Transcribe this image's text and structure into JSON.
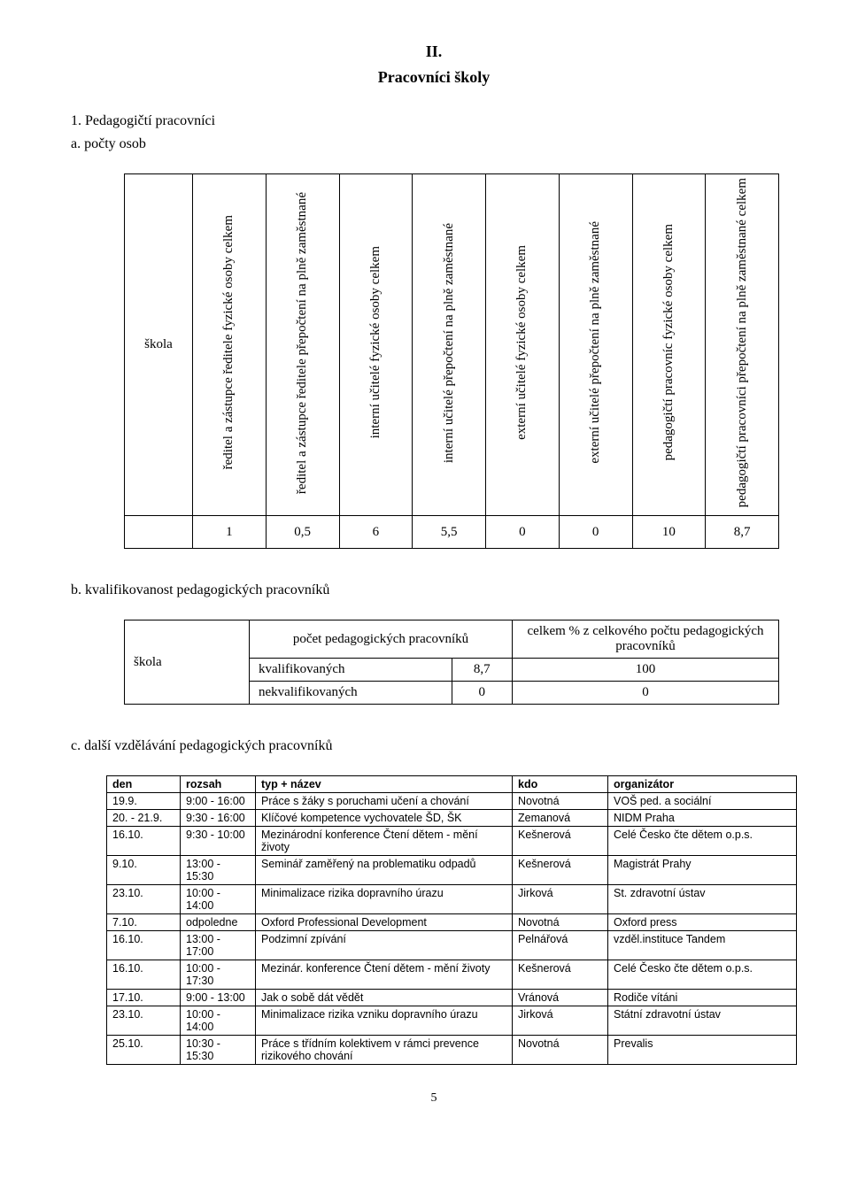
{
  "header": {
    "number": "II.",
    "title": "Pracovníci školy"
  },
  "sec1": {
    "line": "1.    Pedagogičtí pracovníci",
    "sub_a": "a.        počty osob"
  },
  "tableA": {
    "headers": [
      "škola",
      "ředitel a zástupce ředitele\nfyzické osoby celkem",
      "ředitel a zástupce ředitele\npřepočtení na plně zaměstnané",
      "interní učitelé\nfyzické osoby celkem",
      "interní učitelé\npřepočtení na plně zaměstnané",
      "externí učitelé\nfyzické osoby celkem",
      "externí učitelé\npřepočtení na plně zaměstnané",
      "pedagogičtí pracovníc\nfyzické osoby celkem",
      "pedagogičtí pracovníci\npřepočtení na plně zaměstnané\ncelkem"
    ],
    "row": [
      "",
      "1",
      "0,5",
      "6",
      "5,5",
      "0",
      "0",
      "10",
      "8,7"
    ]
  },
  "sec_b": {
    "line": "b.        kvalifikovanost pedagogických pracovníků"
  },
  "tableB": {
    "head": {
      "c1": "škola",
      "c2": "počet pedagogických pracovníků",
      "c3": "celkem % z celkového počtu pedagogických pracovníků"
    },
    "rows": [
      {
        "label": "kvalifikovaných",
        "v1": "8,7",
        "v2": "100"
      },
      {
        "label": "nekvalifikovaných",
        "v1": "0",
        "v2": "0"
      }
    ]
  },
  "sec_c": {
    "line": "c.        další vzdělávání pedagogických pracovníků"
  },
  "tableC": {
    "headers": [
      "den",
      "rozsah",
      "typ + název",
      "kdo",
      "organizátor"
    ],
    "rows": [
      {
        "den": "19.9.",
        "rozsah": "9:00 - 16:00",
        "typ": "Práce s žáky s poruchami učení a chování",
        "kdo": "Novotná",
        "org": "VOŠ ped. a sociální"
      },
      {
        "den": "20. - 21.9.",
        "rozsah": "9:30 - 16:00",
        "typ": "Klíčové kompetence vychovatele ŠD, ŠK",
        "kdo": "Zemanová",
        "org": "NIDM Praha"
      },
      {
        "den": "16.10.",
        "rozsah": "9:30 - 10:00",
        "typ": "Mezinárodní konference Čtení dětem - mění životy",
        "kdo": "Kešnerová",
        "org": "Celé Česko čte dětem o.p.s."
      },
      {
        "den": "9.10.",
        "rozsah": "13:00 - 15:30",
        "typ": "Seminář zaměřený na problematiku odpadů",
        "kdo": "Kešnerová",
        "org": "Magistrát Prahy"
      },
      {
        "den": "23.10.",
        "rozsah": "10:00 - 14:00",
        "typ": "Minimalizace rizika dopravního úrazu",
        "kdo": "Jirková",
        "org": "St. zdravotní ústav"
      },
      {
        "den": "7.10.",
        "rozsah": "odpoledne",
        "typ": "Oxford Professional Development",
        "kdo": "Novotná",
        "org": "Oxford press"
      },
      {
        "den": "16.10.",
        "rozsah": "13:00 - 17:00",
        "typ": "Podzimní zpívání",
        "kdo": "Pelnářová",
        "org": "vzděl.instituce Tandem"
      },
      {
        "den": "16.10.",
        "rozsah": "10:00 - 17:30",
        "typ": "Mezinár. konference Čtení dětem - mění životy",
        "kdo": "Kešnerová",
        "org": "Celé Česko čte dětem o.p.s."
      },
      {
        "den": "17.10.",
        "rozsah": "9:00 - 13:00",
        "typ": "Jak o sobě dát vědět",
        "kdo": "Vránová",
        "org": "Rodiče vítáni"
      },
      {
        "den": "23.10.",
        "rozsah": "10:00 - 14:00",
        "typ": "Minimalizace rizika vzniku dopravního úrazu",
        "kdo": "Jirková",
        "org": "Státní zdravotní ústav"
      },
      {
        "den": "25.10.",
        "rozsah": "10:30 - 15:30",
        "typ": "Práce s třídním kolektivem v rámci prevence rizikového chování",
        "kdo": "Novotná",
        "org": "Prevalis"
      }
    ]
  },
  "pageNumber": "5"
}
